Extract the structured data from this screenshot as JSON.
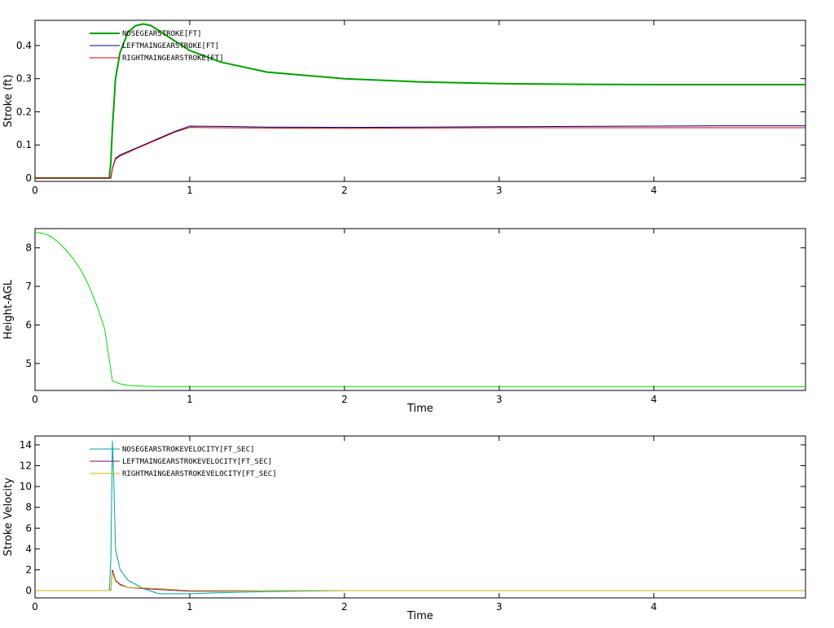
{
  "chart_data": [
    {
      "type": "line",
      "ylabel": "Stroke (ft)",
      "legend": "upper left",
      "xlim": [
        0,
        4.98
      ],
      "xticks": [
        0,
        1,
        2,
        3,
        4
      ],
      "ylim": [
        -0.01,
        0.476
      ],
      "yticks": [
        0,
        0.1,
        0.2,
        0.3,
        0.4
      ],
      "x": [
        0,
        0.48,
        0.49,
        0.5,
        0.52,
        0.55,
        0.6,
        0.65,
        0.7,
        0.75,
        0.8,
        0.9,
        1,
        1.2,
        1.5,
        2,
        2.5,
        3,
        3.5,
        4,
        4.5,
        4.98
      ],
      "series": [
        {
          "name": "NOSEGEARSTROKE[FT]",
          "color": "#00a000",
          "width": 2,
          "values": [
            0,
            0,
            0.05,
            0.15,
            0.3,
            0.38,
            0.44,
            0.46,
            0.465,
            0.46,
            0.445,
            0.415,
            0.385,
            0.35,
            0.32,
            0.3,
            0.29,
            0.285,
            0.283,
            0.282,
            0.282,
            0.282
          ]
        },
        {
          "name": "LEFTMAINGEARSTROKE[FT]",
          "color": "#000080",
          "width": 1,
          "values": [
            0,
            0,
            0,
            0.03,
            0.06,
            0.07,
            0.08,
            0.09,
            0.1,
            0.11,
            0.12,
            0.14,
            0.157,
            0.156,
            0.154,
            0.153,
            0.154,
            0.155,
            0.156,
            0.157,
            0.158,
            0.158
          ]
        },
        {
          "name": "RIGHTMAINGEARSTROKE[FT]",
          "color": "#cc0000",
          "width": 1,
          "values": [
            0,
            0,
            0,
            0.028,
            0.057,
            0.067,
            0.077,
            0.088,
            0.098,
            0.108,
            0.118,
            0.138,
            0.153,
            0.152,
            0.151,
            0.15,
            0.151,
            0.152,
            0.152,
            0.152,
            0.152,
            0.152
          ]
        }
      ]
    },
    {
      "type": "line",
      "ylabel": "Height-AGL",
      "xlabel": "Time",
      "xlim": [
        0,
        4.98
      ],
      "xticks": [
        0,
        1,
        2,
        3,
        4
      ],
      "ylim": [
        4.3,
        8.5
      ],
      "yticks": [
        5,
        6,
        7,
        8
      ],
      "x": [
        0,
        0.05,
        0.1,
        0.15,
        0.2,
        0.25,
        0.3,
        0.35,
        0.4,
        0.45,
        0.5,
        0.55,
        0.6,
        0.7,
        0.8,
        1,
        2,
        3,
        4,
        4.98
      ],
      "series": [
        {
          "color": "#00dd00",
          "width": 1,
          "values": [
            8.4,
            8.38,
            8.3,
            8.15,
            7.95,
            7.7,
            7.4,
            7.0,
            6.5,
            5.9,
            4.55,
            4.47,
            4.43,
            4.41,
            4.4,
            4.4,
            4.4,
            4.4,
            4.4,
            4.4
          ]
        }
      ]
    },
    {
      "type": "line",
      "ylabel": "Stroke Velocity",
      "xlabel": "Time",
      "legend": "upper left",
      "xlim": [
        0,
        4.98
      ],
      "xticks": [
        0,
        1,
        2,
        3,
        4
      ],
      "ylim": [
        -0.7,
        14.85
      ],
      "yticks": [
        0,
        2,
        4,
        6,
        8,
        10,
        12,
        14
      ],
      "x": [
        0,
        0.48,
        0.49,
        0.5,
        0.51,
        0.52,
        0.55,
        0.6,
        0.7,
        0.8,
        1,
        1.2,
        1.5,
        2,
        3,
        4,
        4.98
      ],
      "series": [
        {
          "name": "NOSEGEARSTROKEVELOCITY[FT_SEC]",
          "color": "#00a0a0",
          "width": 1,
          "values": [
            0,
            0,
            3,
            14.4,
            10,
            4,
            2,
            1,
            0.2,
            -0.3,
            -0.3,
            -0.2,
            -0.1,
            0,
            0,
            0,
            0
          ]
        },
        {
          "name": "LEFTMAINGEARSTROKEVELOCITY[FT_SEC]",
          "color": "#800080",
          "width": 1,
          "values": [
            0,
            0,
            0,
            2,
            1.5,
            1,
            0.6,
            0.3,
            0.2,
            0.1,
            -0.05,
            -0.05,
            0,
            0,
            0,
            0,
            0
          ]
        },
        {
          "name": "RIGHTMAINGEARSTROKEVELOCITY[FT_SEC]",
          "color": "#c8b400",
          "width": 1,
          "values": [
            0,
            0,
            0,
            1.8,
            1.3,
            0.9,
            0.5,
            0.3,
            0.25,
            0.2,
            0,
            0,
            0,
            0,
            0,
            0,
            0
          ]
        }
      ]
    }
  ]
}
